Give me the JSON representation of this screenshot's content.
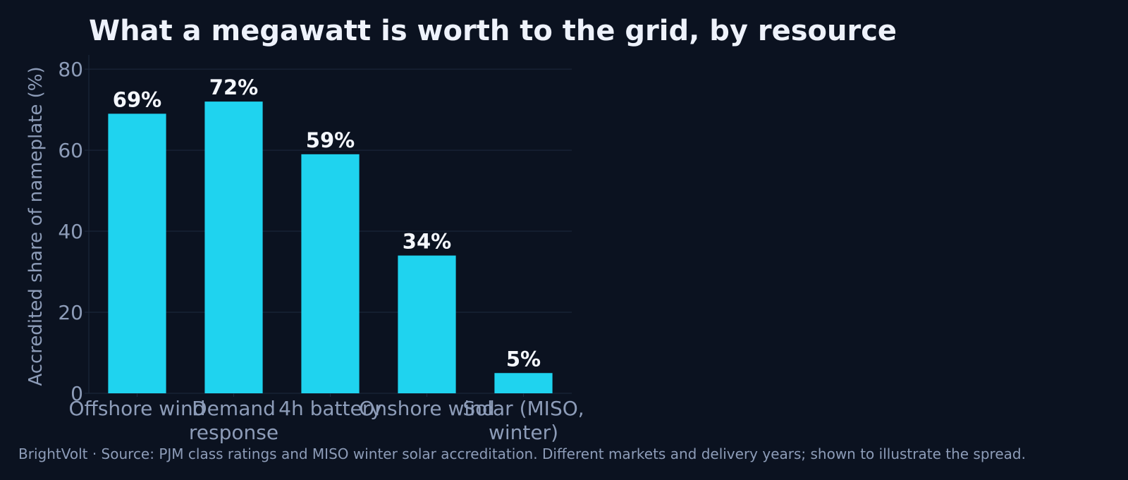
{
  "colors": {
    "background": "#0b1220",
    "bar": "#1fd3ef",
    "grid": "#1e2a3e",
    "text_muted": "#8d9cb8",
    "text_bright": "#eef2fb"
  },
  "footer": {
    "text": "BrightVolt  ·  Source: PJM class ratings and MISO winter solar accreditation. Different markets and delivery years; shown to illustrate the spread."
  },
  "chart_data": {
    "type": "bar",
    "title": "What a megawatt is worth to the grid, by resource",
    "xlabel": "",
    "ylabel": "Accredited share of nameplate (%)",
    "categories": [
      [
        "Offshore wind"
      ],
      [
        "Demand",
        "response"
      ],
      [
        "4h battery"
      ],
      [
        "Onshore wind"
      ],
      [
        "Solar (MISO,",
        "winter)"
      ]
    ],
    "values": [
      69,
      72,
      59,
      34,
      5
    ],
    "data_labels": [
      "69%",
      "72%",
      "59%",
      "34%",
      "5%"
    ],
    "yticks": [
      0,
      20,
      40,
      60,
      80
    ],
    "ylim": [
      0,
      83.5
    ],
    "grid": true,
    "legend": "none"
  }
}
